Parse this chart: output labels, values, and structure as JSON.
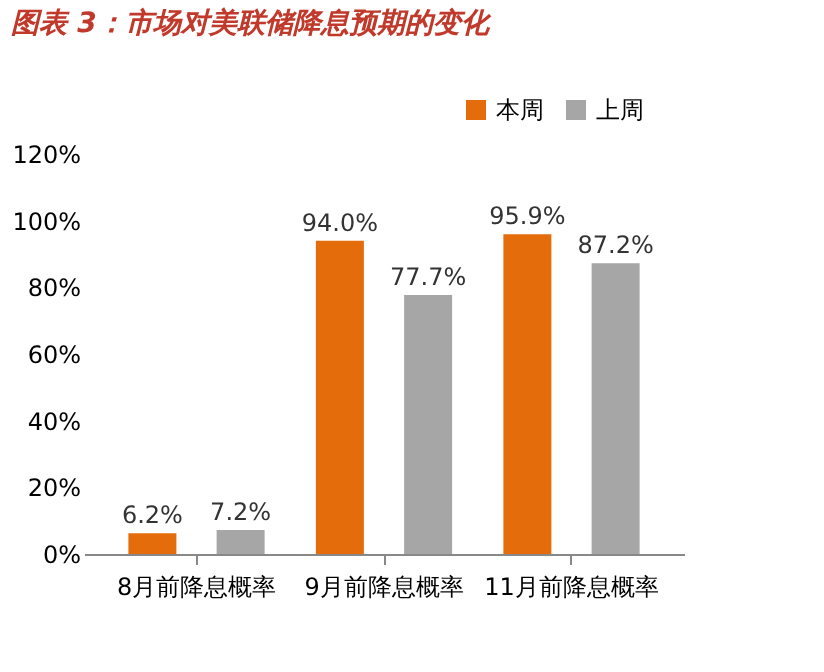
{
  "chart_data": {
    "type": "bar",
    "title": "图表 3：市场对美联储降息预期的变化",
    "categories": [
      "8月前降息概率",
      "9月前降息概率",
      "11月前降息概率"
    ],
    "series": [
      {
        "name": "本周",
        "color": "#e46c0a",
        "values": [
          6.2,
          94.0,
          95.9
        ],
        "value_labels": [
          "6.2%",
          "94.0%",
          "95.9%"
        ]
      },
      {
        "name": "上周",
        "color": "#a6a6a6",
        "values": [
          7.2,
          77.7,
          87.2
        ],
        "value_labels": [
          "7.2%",
          "77.7%",
          "87.2%"
        ]
      }
    ],
    "ylim": [
      0,
      120
    ],
    "yticks": [
      {
        "value": 0,
        "label": "0%"
      },
      {
        "value": 20,
        "label": "20%"
      },
      {
        "value": 40,
        "label": "40%"
      },
      {
        "value": 60,
        "label": "60%"
      },
      {
        "value": 80,
        "label": "80%"
      },
      {
        "value": 100,
        "label": "100%"
      },
      {
        "value": 120,
        "label": "120%"
      }
    ],
    "legend": "top right",
    "grid": false
  }
}
